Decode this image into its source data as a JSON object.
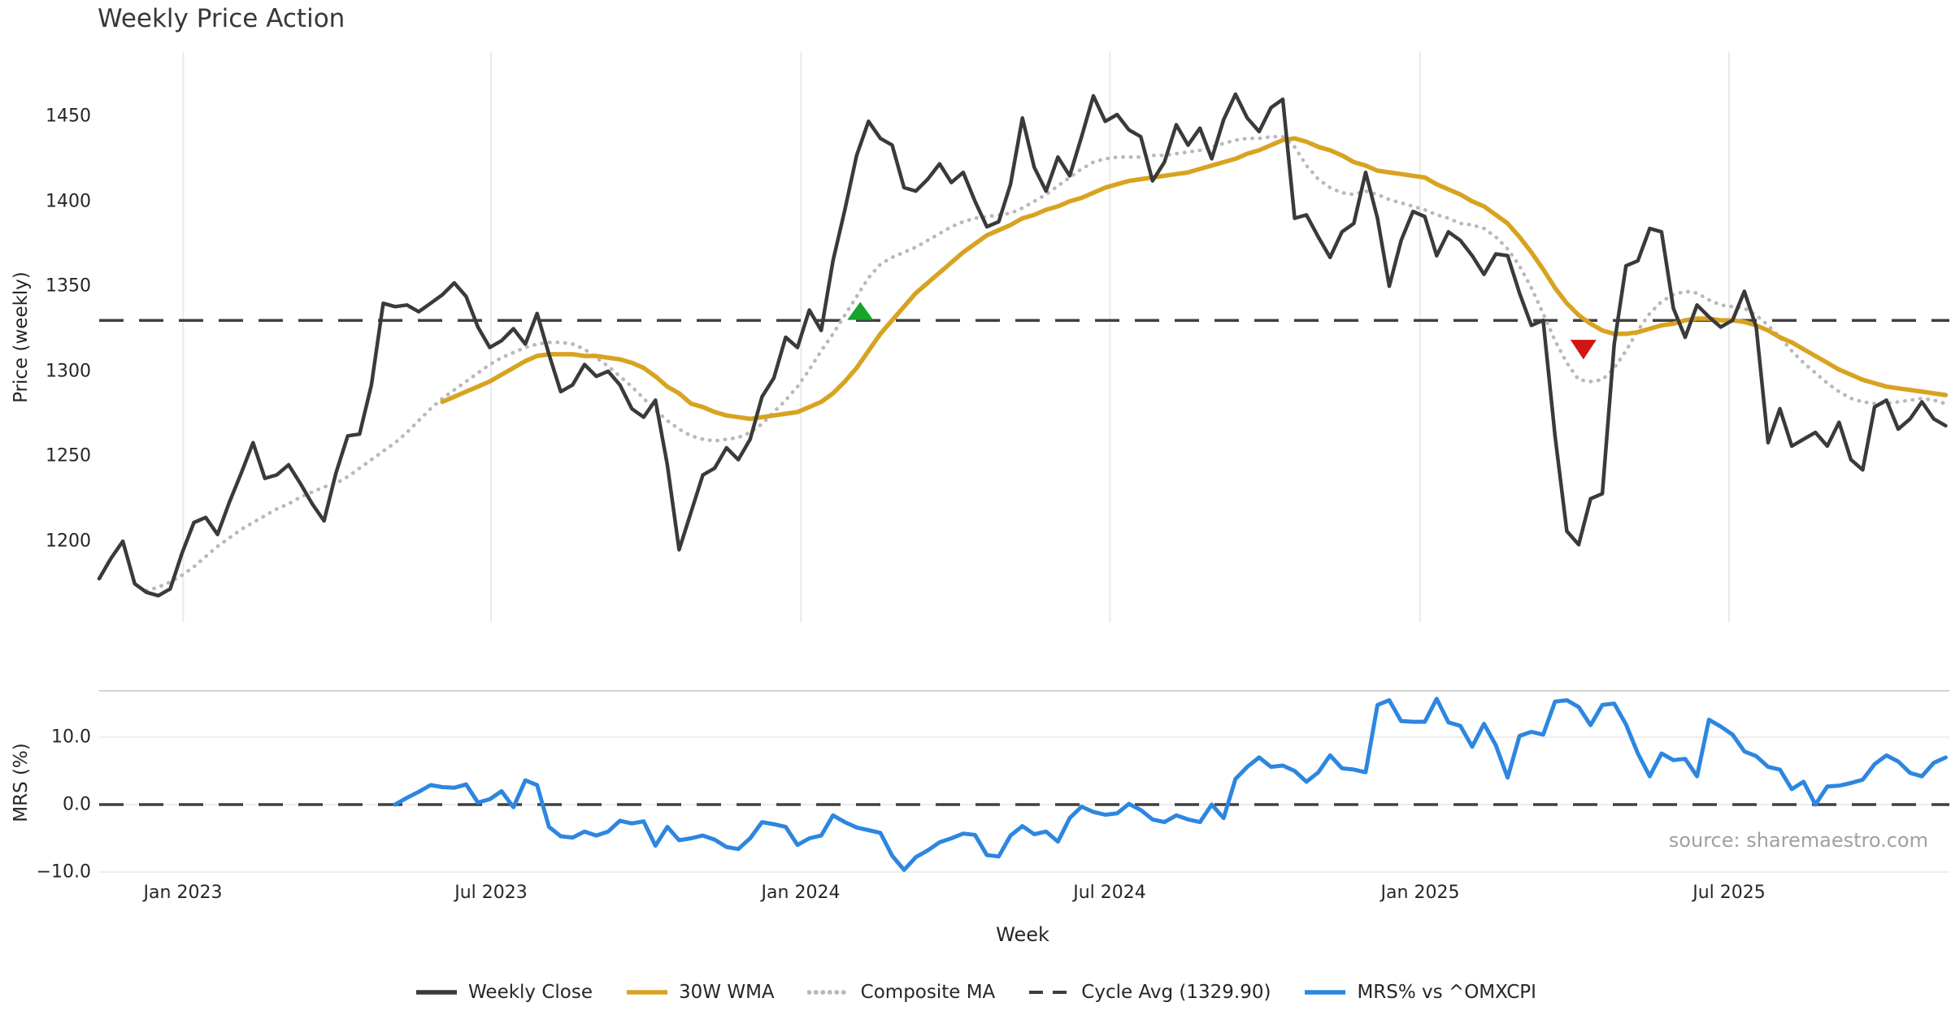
{
  "title": "Weekly Price Action",
  "source_note": "source: sharemaestro.com",
  "chart_data": {
    "type": "line",
    "title": "Weekly Price Action",
    "xlabel": "Week",
    "x_unit": "week-index",
    "grid": "vertical-on-price-panel, horizontal-on-mrs-panel",
    "legend_position": "bottom-center",
    "xticks": [
      {
        "week": 7.1,
        "label": "Jan 2023"
      },
      {
        "week": 33.1,
        "label": "Jul 2023"
      },
      {
        "week": 59.3,
        "label": "Jan 2024"
      },
      {
        "week": 85.4,
        "label": "Jul 2024"
      },
      {
        "week": 111.6,
        "label": "Jan 2025"
      },
      {
        "week": 137.7,
        "label": "Jul 2025"
      }
    ],
    "panels": [
      {
        "name": "price",
        "ylabel": "Price (weekly)",
        "ylim": [
          1152.2,
          1487.8
        ],
        "yticks": [
          {
            "value": 1450,
            "label": "1450"
          },
          {
            "value": 1400,
            "label": "1400"
          },
          {
            "value": 1350,
            "label": "1350"
          },
          {
            "value": 1300,
            "label": "1300"
          },
          {
            "value": 1250,
            "label": "1250"
          },
          {
            "value": 1200,
            "label": "1200"
          }
        ],
        "cycle_avg": 1329.9
      },
      {
        "name": "mrs",
        "ylabel": "MRS (%)",
        "ylim": [
          -11.1,
          16.9
        ],
        "yticks": [
          {
            "value": 10,
            "label": "10.0"
          },
          {
            "value": 0,
            "label": "0.0"
          },
          {
            "value": -10,
            "label": "−10.0"
          }
        ],
        "zero_line": 0
      }
    ],
    "series": [
      {
        "name": "Weekly Close",
        "panel": "price",
        "color": "#3a3a3a",
        "style": "solid",
        "width": 4.5,
        "start_week": 0,
        "values": [
          1178,
          1190,
          1200,
          1175,
          1170,
          1168,
          1172,
          1193,
          1211,
          1214,
          1204,
          1223,
          1240,
          1258,
          1237,
          1239,
          1245,
          1234,
          1222,
          1212,
          1240,
          1262,
          1263,
          1292,
          1340,
          1338,
          1339,
          1335,
          1340,
          1345,
          1352,
          1344,
          1326,
          1314,
          1318,
          1325,
          1316,
          1334,
          1310,
          1288,
          1292,
          1304,
          1297,
          1300,
          1292,
          1278,
          1273,
          1283,
          1245,
          1195,
          1217,
          1239,
          1243,
          1255,
          1248,
          1260,
          1285,
          1296,
          1320,
          1314,
          1336,
          1324,
          1365,
          1395,
          1427,
          1447,
          1437,
          1433,
          1408,
          1406,
          1413,
          1422,
          1411,
          1417,
          1400,
          1385,
          1388,
          1410,
          1449,
          1420,
          1406,
          1426,
          1415,
          1438,
          1462,
          1447,
          1451,
          1442,
          1438,
          1412,
          1423,
          1445,
          1433,
          1443,
          1425,
          1448,
          1463,
          1449,
          1441,
          1455,
          1460,
          1390,
          1392,
          1379,
          1367,
          1382,
          1387,
          1417,
          1390,
          1350,
          1377,
          1394,
          1391,
          1368,
          1382,
          1377,
          1368,
          1357,
          1369,
          1368,
          1346,
          1327,
          1330,
          1262,
          1206,
          1198,
          1225,
          1228,
          1316,
          1362,
          1365,
          1384,
          1382,
          1337,
          1320,
          1339,
          1332,
          1326,
          1330,
          1347,
          1326,
          1258,
          1278,
          1256,
          1260,
          1264,
          1256,
          1270,
          1248,
          1242,
          1279,
          1283,
          1266,
          1272,
          1282,
          1272,
          1268
        ]
      },
      {
        "name": "30W WMA",
        "panel": "price",
        "color": "#d7a321",
        "style": "solid",
        "width": 5.5,
        "start_week": 29,
        "values": [
          1282,
          1285,
          1288,
          1291,
          1294,
          1298,
          1302,
          1306,
          1309,
          1310,
          1310,
          1310,
          1309,
          1309,
          1308,
          1307,
          1305,
          1302,
          1297,
          1291,
          1287,
          1281,
          1279,
          1276,
          1274,
          1273,
          1272,
          1273,
          1274,
          1275,
          1276,
          1279,
          1282,
          1287,
          1294,
          1302,
          1312,
          1322,
          1330,
          1338,
          1346,
          1352,
          1358,
          1364,
          1370,
          1375,
          1380,
          1383,
          1386,
          1390,
          1392,
          1395,
          1397,
          1400,
          1402,
          1405,
          1408,
          1410,
          1412,
          1413,
          1414,
          1415,
          1416,
          1417,
          1419,
          1421,
          1423,
          1425,
          1428,
          1430,
          1433,
          1436,
          1437,
          1435,
          1432,
          1430,
          1427,
          1423,
          1421,
          1418,
          1417,
          1416,
          1415,
          1414,
          1410,
          1407,
          1404,
          1400,
          1397,
          1392,
          1387,
          1379,
          1370,
          1360,
          1349,
          1340,
          1333,
          1328,
          1324,
          1322,
          1322,
          1323,
          1325,
          1327,
          1328,
          1330,
          1331,
          1331,
          1330,
          1330,
          1329,
          1327,
          1324,
          1320,
          1317,
          1313,
          1309,
          1305,
          1301,
          1298,
          1295,
          1293,
          1291,
          1290,
          1289,
          1288,
          1287,
          1286
        ]
      },
      {
        "name": "Composite MA",
        "panel": "price",
        "color": "#b9b9b9",
        "style": "dotted",
        "width": 4.5,
        "start_week": 4,
        "values": [
          1171,
          1173,
          1176,
          1180,
          1185,
          1191,
          1197,
          1202,
          1207,
          1211,
          1215,
          1219,
          1222,
          1226,
          1229,
          1232,
          1234,
          1238,
          1243,
          1248,
          1253,
          1258,
          1264,
          1271,
          1278,
          1284,
          1289,
          1294,
          1299,
          1304,
          1308,
          1311,
          1314,
          1316,
          1317,
          1317,
          1316,
          1313,
          1308,
          1303,
          1297,
          1291,
          1284,
          1277,
          1271,
          1266,
          1262,
          1260,
          1259,
          1260,
          1261,
          1264,
          1269,
          1276,
          1283,
          1291,
          1301,
          1312,
          1322,
          1333,
          1344,
          1355,
          1363,
          1367,
          1370,
          1373,
          1377,
          1381,
          1385,
          1388,
          1390,
          1391,
          1392,
          1393,
          1396,
          1400,
          1404,
          1409,
          1414,
          1419,
          1423,
          1425,
          1426,
          1426,
          1426,
          1427,
          1427,
          1428,
          1429,
          1430,
          1432,
          1434,
          1436,
          1437,
          1437,
          1438,
          1438,
          1432,
          1421,
          1413,
          1408,
          1405,
          1404,
          1406,
          1404,
          1401,
          1399,
          1397,
          1395,
          1392,
          1390,
          1387,
          1386,
          1384,
          1379,
          1372,
          1362,
          1349,
          1334,
          1318,
          1305,
          1295,
          1294,
          1295,
          1302,
          1312,
          1324,
          1334,
          1341,
          1345,
          1347,
          1346,
          1342,
          1339,
          1338,
          1337,
          1333,
          1327,
          1320,
          1312,
          1305,
          1299,
          1293,
          1288,
          1284,
          1282,
          1281,
          1281,
          1282,
          1283,
          1284,
          1283,
          1281
        ]
      },
      {
        "name": "MRS% vs ^OMXCPI",
        "panel": "mrs",
        "color": "#2d86e0",
        "style": "solid",
        "width": 5,
        "start_week": 25,
        "values": [
          0.0,
          1.0,
          1.9,
          2.9,
          2.6,
          2.5,
          3.0,
          0.3,
          0.8,
          2.0,
          -0.4,
          3.6,
          2.9,
          -3.3,
          -4.7,
          -4.9,
          -4.0,
          -4.6,
          -4.0,
          -2.4,
          -2.8,
          -2.5,
          -6.1,
          -3.3,
          -5.3,
          -5.0,
          -4.6,
          -5.2,
          -6.3,
          -6.6,
          -5.0,
          -2.6,
          -2.9,
          -3.3,
          -6.0,
          -5.0,
          -4.6,
          -1.6,
          -2.6,
          -3.4,
          -3.8,
          -4.2,
          -7.6,
          -9.7,
          -7.8,
          -6.8,
          -5.6,
          -5.0,
          -4.3,
          -4.5,
          -7.5,
          -7.7,
          -4.6,
          -3.2,
          -4.4,
          -4.0,
          -5.5,
          -2.0,
          -0.3,
          -1.1,
          -1.5,
          -1.3,
          0.1,
          -0.8,
          -2.2,
          -2.6,
          -1.6,
          -2.2,
          -2.6,
          0.0,
          -2.0,
          3.8,
          5.6,
          7.0,
          5.6,
          5.8,
          5.0,
          3.4,
          4.8,
          7.3,
          5.4,
          5.2,
          4.8,
          14.8,
          15.5,
          12.4,
          12.3,
          12.3,
          15.7,
          12.2,
          11.7,
          8.6,
          12.0,
          8.8,
          4.0,
          10.2,
          10.8,
          10.4,
          15.3,
          15.5,
          14.5,
          11.8,
          14.8,
          15.0,
          11.9,
          7.6,
          4.2,
          7.6,
          6.6,
          6.8,
          4.2,
          12.6,
          11.6,
          10.4,
          7.9,
          7.2,
          5.6,
          5.2,
          2.3,
          3.4,
          0.0,
          2.7,
          2.8,
          3.2,
          3.7,
          6.0,
          7.3,
          6.4,
          4.7,
          4.2,
          6.2,
          7.0
        ]
      }
    ],
    "markers": [
      {
        "shape": "triangle-up",
        "week": 64.3,
        "y_base": 1330.2,
        "y_apex": 1340.8,
        "color": "#18a32a",
        "meaning": "cross-above-cycle-avg"
      },
      {
        "shape": "triangle-down",
        "week": 125.4,
        "y_base": 1318.5,
        "y_apex": 1307.0,
        "color": "#cf1515",
        "meaning": "cross-below-cycle-avg"
      }
    ],
    "legend": [
      {
        "label": "Weekly Close",
        "style": "solid",
        "color": "#3a3a3a"
      },
      {
        "label": "30W WMA",
        "style": "solid",
        "color": "#d7a321"
      },
      {
        "label": "Composite MA",
        "style": "dotted",
        "color": "#b9b9b9"
      },
      {
        "label": "Cycle Avg (1329.90)",
        "style": "dashed",
        "color": "#3d3d3d"
      },
      {
        "label": "MRS% vs ^OMXCPI",
        "style": "solid",
        "color": "#2d86e0"
      }
    ],
    "colors": {
      "background": "#ffffff",
      "grid_vertical": "#e9e9e9",
      "grid_horizontal": "#ededed",
      "panel_spine": "#d4d4d4",
      "cycle_dash": "#404040",
      "tick_text": "#262626",
      "source_text": "#a0a0a0"
    }
  }
}
